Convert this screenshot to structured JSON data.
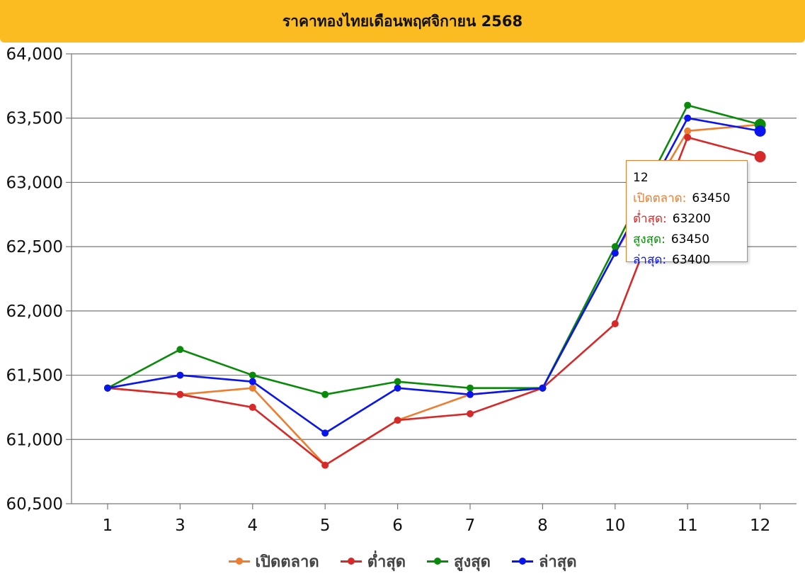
{
  "chart_data": {
    "type": "line",
    "title": "ราคาทองไทยเดือนพฤศจิกายน 2568",
    "categories": [
      "1",
      "3",
      "4",
      "5",
      "6",
      "7",
      "8",
      "10",
      "11",
      "12"
    ],
    "ylim": [
      60500,
      64000
    ],
    "yticks": [
      "60,500",
      "61,000",
      "61,500",
      "62,000",
      "62,500",
      "63,000",
      "63,500",
      "64,000"
    ],
    "grid": true,
    "legend_position": "bottom",
    "series": [
      {
        "name": "เปิดตลาด",
        "color": "#ed7d31",
        "values": [
          61400,
          61350,
          61400,
          60800,
          61150,
          61350,
          61400,
          62450,
          63400,
          63450
        ]
      },
      {
        "name": "ต่ำสุด",
        "color": "#d62a2a",
        "values": [
          61400,
          61350,
          61250,
          60800,
          61150,
          61200,
          61400,
          61900,
          63350,
          63200
        ]
      },
      {
        "name": "สูงสุด",
        "color": "#0a8a0a",
        "values": [
          61400,
          61700,
          61500,
          61350,
          61450,
          61400,
          61400,
          62500,
          63600,
          63450
        ]
      },
      {
        "name": "ล่าสุด",
        "color": "#0a14ee",
        "values": [
          61400,
          61500,
          61450,
          61050,
          61400,
          61350,
          61400,
          62450,
          63500,
          63400
        ]
      }
    ]
  },
  "tooltip": {
    "title": "12",
    "rows": [
      {
        "label": "เปิดตลาด:",
        "value": "63450"
      },
      {
        "label": "ต่ำสุด:",
        "value": "63200"
      },
      {
        "label": "สูงสุด:",
        "value": "63450"
      },
      {
        "label": "ล่าสุด:",
        "value": "63400"
      }
    ]
  }
}
